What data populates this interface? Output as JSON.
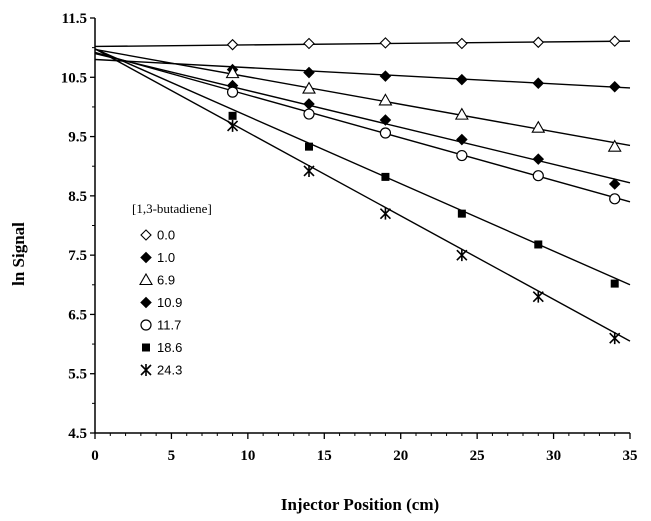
{
  "chart_data": {
    "type": "scatter",
    "xlabel": "Injector Position (cm)",
    "ylabel": "ln Signal",
    "xlim": [
      0,
      35
    ],
    "ylim": [
      4.5,
      11.5
    ],
    "x_ticks": [
      0,
      5,
      10,
      15,
      20,
      25,
      30,
      35
    ],
    "y_ticks": [
      4.5,
      5.5,
      6.5,
      7.5,
      8.5,
      9.5,
      10.5,
      11.5
    ],
    "x_tick_labels": [
      "0",
      "5",
      "10",
      "15",
      "20",
      "25",
      "30",
      "35"
    ],
    "y_tick_labels": [
      "4.5",
      "5.5",
      "6.5",
      "7.5",
      "8.5",
      "9.5",
      "10.5",
      "11.5"
    ],
    "grid": false,
    "legend_title": "[1,3-butadiene]",
    "legend_position": "left",
    "x": [
      9,
      14,
      19,
      24,
      29,
      34
    ],
    "series": [
      {
        "name": "0.0",
        "marker": "diamond-open",
        "values": [
          11.05,
          11.07,
          11.08,
          11.07,
          11.09,
          11.11
        ],
        "fit": [
          0,
          11.02,
          35,
          11.11
        ]
      },
      {
        "name": "1.0",
        "marker": "diamond-filled",
        "values": [
          10.63,
          10.58,
          10.52,
          10.46,
          10.4,
          10.34
        ],
        "fit": [
          0,
          10.8,
          35,
          10.32
        ]
      },
      {
        "name": "6.9",
        "marker": "triangle-open",
        "values": [
          10.57,
          10.31,
          10.11,
          9.87,
          9.65,
          9.33
        ],
        "fit": [
          0,
          10.97,
          35,
          9.35
        ]
      },
      {
        "name": "10.9",
        "marker": "diamond-filled",
        "values": [
          10.36,
          10.05,
          9.78,
          9.45,
          9.12,
          8.7
        ],
        "fit": [
          0,
          10.9,
          35,
          8.72
        ]
      },
      {
        "name": "11.7",
        "marker": "circle-open",
        "values": [
          10.25,
          9.88,
          9.56,
          9.18,
          8.84,
          8.45
        ],
        "fit": [
          0,
          10.92,
          35,
          8.4
        ]
      },
      {
        "name": "18.6",
        "marker": "square-filled",
        "values": [
          9.85,
          9.33,
          8.82,
          8.2,
          7.68,
          7.02
        ],
        "fit": [
          0,
          10.98,
          35,
          7.0
        ]
      },
      {
        "name": "24.3",
        "marker": "star",
        "values": [
          9.68,
          8.92,
          8.2,
          7.5,
          6.8,
          6.1
        ],
        "fit": [
          0,
          10.98,
          35,
          6.05
        ]
      }
    ]
  }
}
